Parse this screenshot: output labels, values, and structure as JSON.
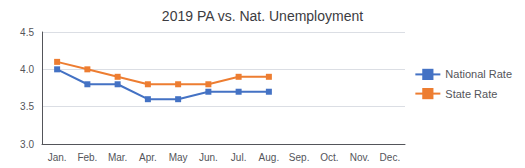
{
  "chart_data": {
    "type": "line",
    "title": "2019 PA vs. Nat. Unemployment",
    "categories": [
      "Jan.",
      "Feb.",
      "Mar.",
      "Apr.",
      "May",
      "Jun.",
      "Jul.",
      "Aug.",
      "Sep.",
      "Oct.",
      "Nov.",
      "Dec."
    ],
    "series": [
      {
        "name": "National Rate",
        "color": "#4472C4",
        "values": [
          4.0,
          3.8,
          3.8,
          3.6,
          3.6,
          3.7,
          3.7,
          3.7,
          null,
          null,
          null,
          null
        ]
      },
      {
        "name": "State Rate",
        "color": "#ED7D31",
        "values": [
          4.1,
          4.0,
          3.9,
          3.8,
          3.8,
          3.8,
          3.9,
          3.9,
          null,
          null,
          null,
          null
        ]
      }
    ],
    "ylim": [
      3.0,
      4.5
    ],
    "yticks": [
      {
        "value": 3.0,
        "label": "3.0"
      },
      3.5,
      {
        "value": 4.0,
        "label": "4.0"
      },
      4.5
    ],
    "grid": true,
    "legend": "right",
    "marker": "square"
  }
}
